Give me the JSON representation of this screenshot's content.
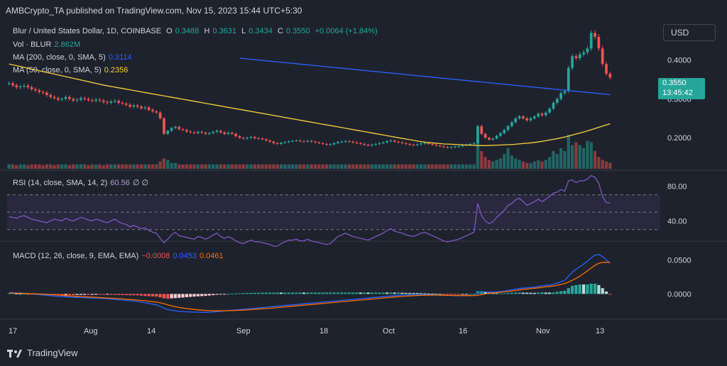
{
  "header": {
    "publisher": "AMBCrypto_TA published on TradingView.com, Nov 15, 2023 15:44 UTC+5:30"
  },
  "currency_button": "USD",
  "main_legend": {
    "symbol": "Blur / United States Dollar, 1D, COINBASE",
    "o_label": "O",
    "o_val": "0.3488",
    "h_label": "H",
    "h_val": "0.3631",
    "l_label": "L",
    "l_val": "0.3434",
    "c_label": "C",
    "c_val": "0.3550",
    "change": "+0.0064 (+1.84%)",
    "vol_label": "Vol · BLUR",
    "vol_val": "2.862M",
    "ma200_label": "MA (200, close, 0, SMA, 5)",
    "ma200_val": "0.3114",
    "ma50_label": "MA (50, close, 0, SMA, 5)",
    "ma50_val": "0.2356"
  },
  "price_box": {
    "price": "0.3550",
    "countdown": "13:45:42"
  },
  "rsi_legend": {
    "label": "RSI (14, close, SMA, 14, 2)",
    "value": "60.56",
    "extra": "∅ ∅"
  },
  "macd_legend": {
    "label": "MACD (12, 26, close, 9, EMA, EMA)",
    "hist": "−0.0008",
    "macd": "0.0453",
    "signal": "0.0461"
  },
  "footer": {
    "brand": "TradingView"
  },
  "colors": {
    "up": "#26a69a",
    "down": "#ef5350",
    "ma200": "#2962ff",
    "ma50": "#f5d33b",
    "rsi": "#7e57c2",
    "macd": "#2962ff",
    "signal": "#ff6d00"
  },
  "chart_data": [
    {
      "type": "candlestick",
      "title": "Blur / United States Dollar, 1D, COINBASE",
      "x_ticks": [
        "17",
        "Aug",
        "14",
        "Sep",
        "18",
        "Oct",
        "16",
        "Nov",
        "13"
      ],
      "y_ticks": [
        "0.4000",
        "0.3000",
        "0.2000"
      ],
      "ylim": [
        0.12,
        0.5
      ],
      "closes": [
        0.34,
        0.335,
        0.33,
        0.332,
        0.334,
        0.33,
        0.325,
        0.322,
        0.318,
        0.316,
        0.31,
        0.305,
        0.302,
        0.298,
        0.3,
        0.305,
        0.3,
        0.296,
        0.298,
        0.302,
        0.3,
        0.297,
        0.295,
        0.298,
        0.296,
        0.292,
        0.29,
        0.293,
        0.295,
        0.29,
        0.288,
        0.285,
        0.28,
        0.283,
        0.28,
        0.276,
        0.278,
        0.272,
        0.268,
        0.265,
        0.25,
        0.21,
        0.218,
        0.225,
        0.228,
        0.222,
        0.22,
        0.216,
        0.214,
        0.212,
        0.215,
        0.213,
        0.21,
        0.212,
        0.215,
        0.218,
        0.214,
        0.21,
        0.213,
        0.21,
        0.204,
        0.2,
        0.198,
        0.2,
        0.202,
        0.199,
        0.198,
        0.196,
        0.193,
        0.19,
        0.186,
        0.184,
        0.187,
        0.189,
        0.191,
        0.192,
        0.193,
        0.191,
        0.19,
        0.192,
        0.19,
        0.188,
        0.186,
        0.184,
        0.182,
        0.183,
        0.186,
        0.189,
        0.19,
        0.191,
        0.19,
        0.188,
        0.186,
        0.184,
        0.182,
        0.18,
        0.182,
        0.184,
        0.186,
        0.188,
        0.191,
        0.193,
        0.19,
        0.188,
        0.186,
        0.184,
        0.182,
        0.181,
        0.183,
        0.185,
        0.186,
        0.184,
        0.182,
        0.18,
        0.178,
        0.176,
        0.175,
        0.176,
        0.177,
        0.178,
        0.18,
        0.182,
        0.184,
        0.186,
        0.23,
        0.21,
        0.2,
        0.195,
        0.198,
        0.205,
        0.212,
        0.22,
        0.23,
        0.24,
        0.25,
        0.255,
        0.25,
        0.245,
        0.25,
        0.255,
        0.262,
        0.258,
        0.265,
        0.275,
        0.29,
        0.3,
        0.315,
        0.32,
        0.38,
        0.41,
        0.405,
        0.415,
        0.42,
        0.43,
        0.47,
        0.46,
        0.43,
        0.39,
        0.365,
        0.355
      ],
      "volume": [
        0.3,
        0.3,
        0.25,
        0.3,
        0.3,
        0.25,
        0.3,
        0.3,
        0.3,
        0.25,
        0.3,
        0.3,
        0.25,
        0.3,
        0.3,
        0.3,
        0.25,
        0.3,
        0.3,
        0.3,
        0.3,
        0.25,
        0.3,
        0.3,
        0.3,
        0.25,
        0.3,
        0.3,
        0.3,
        0.3,
        0.3,
        0.3,
        0.3,
        0.3,
        0.3,
        0.3,
        0.3,
        0.3,
        0.3,
        0.3,
        0.5,
        0.7,
        0.6,
        0.4,
        0.4,
        0.3,
        0.3,
        0.3,
        0.3,
        0.3,
        0.3,
        0.3,
        0.3,
        0.3,
        0.3,
        0.3,
        0.3,
        0.3,
        0.3,
        0.3,
        0.3,
        0.3,
        0.3,
        0.3,
        0.3,
        0.3,
        0.3,
        0.3,
        0.3,
        0.3,
        0.3,
        0.3,
        0.3,
        0.3,
        0.3,
        0.3,
        0.3,
        0.3,
        0.3,
        0.3,
        0.3,
        0.3,
        0.3,
        0.3,
        0.3,
        0.3,
        0.3,
        0.3,
        0.3,
        0.3,
        0.3,
        0.3,
        0.3,
        0.3,
        0.3,
        0.3,
        0.3,
        0.3,
        0.3,
        0.3,
        0.3,
        0.3,
        0.3,
        0.3,
        0.3,
        0.3,
        0.3,
        0.3,
        0.3,
        0.3,
        0.3,
        0.3,
        0.3,
        0.3,
        0.3,
        0.3,
        0.3,
        0.3,
        0.3,
        0.3,
        0.3,
        0.3,
        0.3,
        0.3,
        2.0,
        1.2,
        0.8,
        0.6,
        0.5,
        0.6,
        0.7,
        1.0,
        1.4,
        0.9,
        0.7,
        0.6,
        0.5,
        0.4,
        0.4,
        0.5,
        0.6,
        0.5,
        0.6,
        0.8,
        1.2,
        1.0,
        1.4,
        1.2,
        2.3,
        1.6,
        1.8,
        1.6,
        1.4,
        1.9,
        1.8,
        1.2,
        0.8,
        0.6,
        0.5,
        0.4
      ],
      "ma200": [
        0.405,
        0.404,
        0.403,
        0.402,
        0.401,
        0.4,
        0.399,
        0.398,
        0.397,
        0.396,
        0.395,
        0.394,
        0.393,
        0.392,
        0.391,
        0.39,
        0.389,
        0.388,
        0.387,
        0.386,
        0.385,
        0.384,
        0.383,
        0.382,
        0.381,
        0.38,
        0.379,
        0.378,
        0.377,
        0.376,
        0.375,
        0.374,
        0.373,
        0.372,
        0.371,
        0.37,
        0.369,
        0.368,
        0.367,
        0.366,
        0.365,
        0.364,
        0.363,
        0.362,
        0.361,
        0.36,
        0.359,
        0.358,
        0.357,
        0.356,
        0.355,
        0.354,
        0.353,
        0.352,
        0.351,
        0.35,
        0.349,
        0.348,
        0.347,
        0.346,
        0.345,
        0.344,
        0.343,
        0.342,
        0.341,
        0.34,
        0.339,
        0.338,
        0.337,
        0.336,
        0.335,
        0.334,
        0.333,
        0.332,
        0.331,
        0.33,
        0.329,
        0.328,
        0.327,
        0.326,
        0.325,
        0.324,
        0.323,
        0.322,
        0.321,
        0.32,
        0.319,
        0.318,
        0.317,
        0.316,
        0.315,
        0.314,
        0.313,
        0.312,
        0.311
      ],
      "ma50": [
        0.39,
        0.385,
        0.38,
        0.375,
        0.37,
        0.365,
        0.36,
        0.355,
        0.35,
        0.345,
        0.34,
        0.335,
        0.331,
        0.327,
        0.323,
        0.319,
        0.315,
        0.311,
        0.307,
        0.303,
        0.299,
        0.295,
        0.291,
        0.287,
        0.283,
        0.279,
        0.275,
        0.271,
        0.267,
        0.263,
        0.259,
        0.255,
        0.251,
        0.247,
        0.243,
        0.239,
        0.235,
        0.231,
        0.227,
        0.223,
        0.219,
        0.215,
        0.211,
        0.207,
        0.203,
        0.199,
        0.195,
        0.191,
        0.188,
        0.186,
        0.184,
        0.183,
        0.182,
        0.181,
        0.18,
        0.18,
        0.181,
        0.182,
        0.183,
        0.185,
        0.187,
        0.19,
        0.194,
        0.198,
        0.203,
        0.209,
        0.215,
        0.222,
        0.229,
        0.236
      ],
      "rsi": [
        45,
        44,
        43,
        45,
        46,
        44,
        42,
        41,
        40,
        39,
        38,
        40,
        42,
        41,
        40,
        43,
        41,
        40,
        42,
        44,
        43,
        41,
        40,
        42,
        41,
        39,
        38,
        40,
        42,
        39,
        37,
        36,
        33,
        35,
        33,
        31,
        32,
        29,
        27,
        26,
        20,
        15,
        19,
        24,
        27,
        23,
        22,
        21,
        20,
        19,
        22,
        21,
        19,
        21,
        24,
        26,
        22,
        20,
        22,
        20,
        17,
        15,
        14,
        16,
        18,
        16,
        16,
        15,
        14,
        13,
        11,
        11,
        14,
        16,
        18,
        18,
        19,
        17,
        17,
        19,
        17,
        16,
        15,
        14,
        13,
        14,
        18,
        22,
        24,
        26,
        24,
        22,
        21,
        20,
        19,
        18,
        20,
        22,
        24,
        26,
        29,
        31,
        28,
        27,
        26,
        24,
        23,
        22,
        24,
        26,
        27,
        25,
        23,
        21,
        19,
        17,
        16,
        17,
        18,
        19,
        21,
        23,
        25,
        27,
        60,
        46,
        40,
        37,
        39,
        44,
        48,
        52,
        58,
        60,
        64,
        66,
        62,
        58,
        60,
        62,
        65,
        62,
        65,
        68,
        72,
        73,
        76,
        74,
        86,
        87,
        84,
        86,
        86,
        88,
        92,
        90,
        83,
        68,
        61,
        60.56
      ],
      "rsi_ylim": [
        20,
        90
      ],
      "rsi_ticks": [
        "80.00",
        "40.00"
      ],
      "macd": [
        0.002,
        0.002,
        0.0015,
        0.0012,
        0.001,
        0.0005,
        0.0,
        -0.0005,
        -0.001,
        -0.0015,
        -0.002,
        -0.0025,
        -0.003,
        -0.0035,
        -0.004,
        -0.004,
        -0.0045,
        -0.005,
        -0.005,
        -0.0052,
        -0.0055,
        -0.0058,
        -0.006,
        -0.0062,
        -0.0065,
        -0.0068,
        -0.007,
        -0.0075,
        -0.008,
        -0.0085,
        -0.009,
        -0.0095,
        -0.01,
        -0.0105,
        -0.011,
        -0.012,
        -0.013,
        -0.014,
        -0.015,
        -0.016,
        -0.018,
        -0.021,
        -0.023,
        -0.024,
        -0.025,
        -0.0255,
        -0.026,
        -0.0262,
        -0.0265,
        -0.0267,
        -0.0268,
        -0.027,
        -0.027,
        -0.0268,
        -0.0265,
        -0.026,
        -0.0255,
        -0.025,
        -0.0245,
        -0.024,
        -0.0235,
        -0.023,
        -0.0225,
        -0.022,
        -0.0215,
        -0.021,
        -0.0205,
        -0.02,
        -0.0195,
        -0.019,
        -0.0185,
        -0.018,
        -0.0175,
        -0.017,
        -0.0165,
        -0.016,
        -0.0155,
        -0.015,
        -0.0145,
        -0.014,
        -0.0135,
        -0.013,
        -0.0125,
        -0.012,
        -0.0115,
        -0.011,
        -0.0105,
        -0.01,
        -0.0095,
        -0.009,
        -0.0085,
        -0.008,
        -0.0075,
        -0.007,
        -0.0065,
        -0.006,
        -0.0055,
        -0.005,
        -0.0045,
        -0.004,
        -0.0035,
        -0.003,
        -0.0025,
        -0.002,
        -0.0018,
        -0.0016,
        -0.0014,
        -0.0012,
        -0.001,
        -0.001,
        -0.001,
        -0.0012,
        -0.0014,
        -0.0016,
        -0.0018,
        -0.002,
        -0.0022,
        -0.0024,
        -0.0025,
        -0.0026,
        -0.0026,
        -0.0025,
        -0.0024,
        -0.0022,
        0.002,
        0.003,
        0.003,
        0.0028,
        0.0028,
        0.003,
        0.0035,
        0.004,
        0.005,
        0.006,
        0.007,
        0.008,
        0.0085,
        0.009,
        0.0095,
        0.01,
        0.011,
        0.012,
        0.0125,
        0.013,
        0.014,
        0.016,
        0.018,
        0.02,
        0.026,
        0.032,
        0.036,
        0.04,
        0.044,
        0.048,
        0.053,
        0.057,
        0.058,
        0.055,
        0.05,
        0.0453
      ],
      "signal": [
        0.001,
        0.001,
        0.001,
        0.001,
        0.0008,
        0.0006,
        0.0004,
        0.0002,
        0.0,
        -0.0003,
        -0.0006,
        -0.001,
        -0.0013,
        -0.0017,
        -0.002,
        -0.0024,
        -0.0028,
        -0.0032,
        -0.0035,
        -0.0038,
        -0.0041,
        -0.0044,
        -0.0047,
        -0.005,
        -0.0053,
        -0.0056,
        -0.0059,
        -0.0062,
        -0.0065,
        -0.0069,
        -0.0073,
        -0.0077,
        -0.0081,
        -0.0085,
        -0.009,
        -0.0095,
        -0.01,
        -0.0107,
        -0.0114,
        -0.0121,
        -0.013,
        -0.0145,
        -0.016,
        -0.0175,
        -0.0188,
        -0.0198,
        -0.0207,
        -0.0215,
        -0.0222,
        -0.0228,
        -0.0233,
        -0.0238,
        -0.0242,
        -0.0245,
        -0.0247,
        -0.0248,
        -0.0248,
        -0.0247,
        -0.0246,
        -0.0244,
        -0.0242,
        -0.024,
        -0.0237,
        -0.0234,
        -0.023,
        -0.0226,
        -0.0222,
        -0.0218,
        -0.0214,
        -0.021,
        -0.0205,
        -0.02,
        -0.0195,
        -0.019,
        -0.0185,
        -0.018,
        -0.0175,
        -0.017,
        -0.0165,
        -0.016,
        -0.0155,
        -0.015,
        -0.0145,
        -0.014,
        -0.0135,
        -0.013,
        -0.0125,
        -0.012,
        -0.0115,
        -0.011,
        -0.0105,
        -0.01,
        -0.0095,
        -0.009,
        -0.0085,
        -0.008,
        -0.0075,
        -0.007,
        -0.0065,
        -0.006,
        -0.0055,
        -0.005,
        -0.0045,
        -0.004,
        -0.0036,
        -0.0032,
        -0.0029,
        -0.0026,
        -0.0023,
        -0.0021,
        -0.0019,
        -0.0018,
        -0.0018,
        -0.0018,
        -0.0018,
        -0.0019,
        -0.002,
        -0.0021,
        -0.0022,
        -0.0023,
        -0.0024,
        -0.0024,
        -0.0024,
        -0.0023,
        -0.002,
        -0.001,
        0.0,
        0.001,
        0.0015,
        0.002,
        0.0025,
        0.003,
        0.0036,
        0.0042,
        0.005,
        0.0058,
        0.0066,
        0.0072,
        0.0078,
        0.0084,
        0.009,
        0.0097,
        0.0104,
        0.011,
        0.0118,
        0.0128,
        0.014,
        0.0153,
        0.0175,
        0.02,
        0.023,
        0.026,
        0.03,
        0.034,
        0.038,
        0.042,
        0.045,
        0.0465,
        0.0465,
        0.0461
      ],
      "macd_ylim": [
        -0.035,
        0.065
      ],
      "macd_ticks": [
        "0.0500",
        "0.0000"
      ]
    }
  ]
}
